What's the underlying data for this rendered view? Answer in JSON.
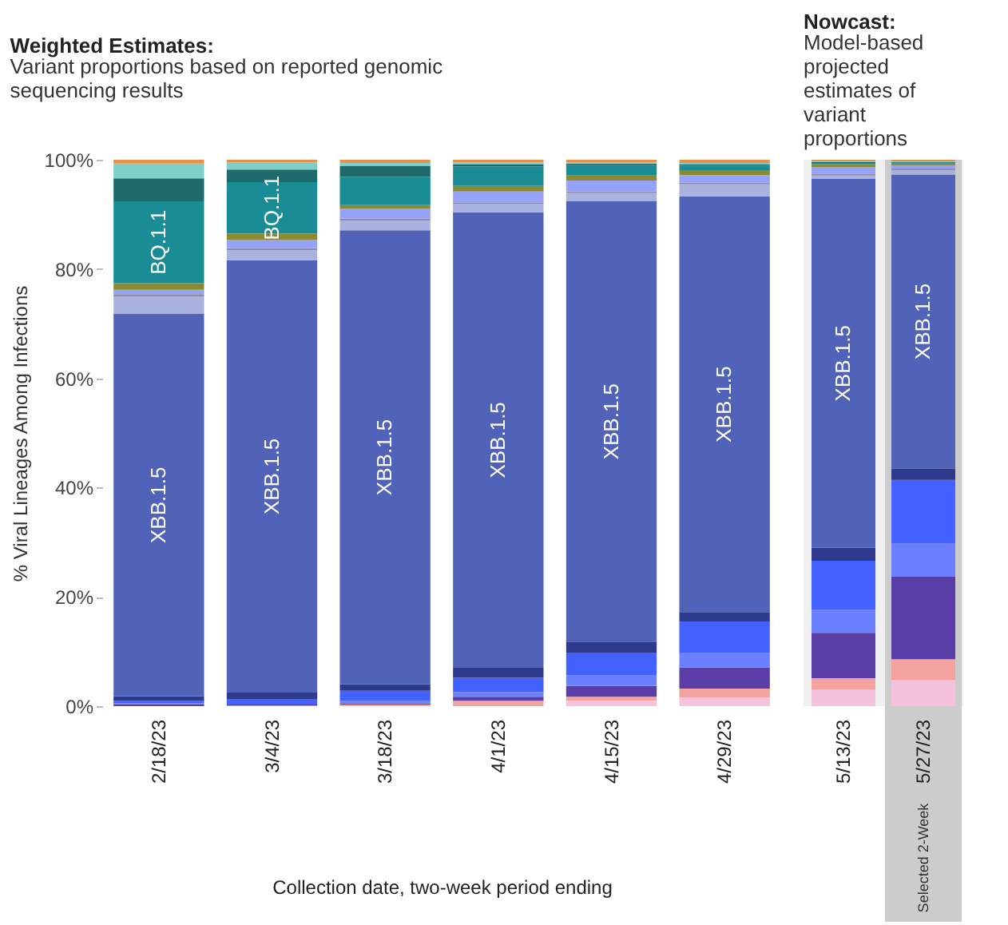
{
  "chart_data": [
    {
      "type": "bar",
      "stacked": true,
      "title": "Weighted Estimates:",
      "subtitle": "Variant proportions based on reported genomic sequencing results",
      "ylabel": "% Viral Lineages Among Infections",
      "xlabel": "Collection date, two-week period ending",
      "categories": [
        "2/18/23",
        "3/4/23",
        "3/18/23",
        "4/1/23",
        "4/15/23",
        "4/29/23"
      ],
      "ylim": [
        0,
        100
      ],
      "yticks": [
        {
          "value": 0,
          "label": "0%"
        },
        {
          "value": 20,
          "label": "20%"
        },
        {
          "value": 40,
          "label": "40%"
        },
        {
          "value": 60,
          "label": "60%"
        },
        {
          "value": 80,
          "label": "80%"
        },
        {
          "value": 100,
          "label": "100%"
        }
      ],
      "series": [
        {
          "color": "#f4c2dc",
          "values": [
            0,
            0,
            0,
            0,
            1.0,
            1.6
          ]
        },
        {
          "color": "#f4a3a0",
          "values": [
            0,
            0.1,
            0.3,
            1.0,
            0.7,
            1.6
          ]
        },
        {
          "color": "#5a3ea8",
          "values": [
            0.3,
            0.2,
            0.2,
            0.7,
            2.0,
            3.9
          ]
        },
        {
          "color": "#6a80ff",
          "values": [
            0.2,
            0,
            0.5,
            0.9,
            2.0,
            2.6
          ]
        },
        {
          "color": "#4361ff",
          "values": [
            0.5,
            1.0,
            1.8,
            2.6,
            4.1,
            5.8
          ]
        },
        {
          "color": "#2e3a8c",
          "values": [
            0.8,
            1.2,
            1.2,
            1.8,
            2.0,
            1.7
          ]
        },
        {
          "name": "XBB.1.5",
          "color": "#5163b8",
          "values": [
            70,
            79.1,
            83.1,
            83.4,
            80.6,
            76.1
          ]
        },
        {
          "color": "#a9b2df",
          "values": [
            3.2,
            1.8,
            1.8,
            1.5,
            1.5,
            2.2
          ]
        },
        {
          "color": "#8d8fa8",
          "values": [
            0.4,
            0.4,
            0.3,
            0.3,
            0.3,
            0.3
          ]
        },
        {
          "color": "#95a2f8",
          "values": [
            0.8,
            1.5,
            1.8,
            2.0,
            2.0,
            1.4
          ]
        },
        {
          "color": "#8a8a30",
          "values": [
            1.2,
            1.2,
            0.7,
            1.0,
            0.9,
            0.9
          ]
        },
        {
          "name": "BQ.1.1",
          "color": "#1a8c96",
          "values": [
            15,
            9.4,
            5.2,
            3.6,
            1.9,
            0.8
          ]
        },
        {
          "color": "#1f6b6b",
          "values": [
            4.2,
            2.3,
            2.0,
            0.4,
            0.3,
            0.3
          ]
        },
        {
          "color": "#7ecfc8",
          "values": [
            2.7,
            1.3,
            0.5,
            0.3,
            0.2,
            0.2
          ]
        },
        {
          "color": "#e8904a",
          "values": [
            0.7,
            0.5,
            0.6,
            0.5,
            0.5,
            0.6
          ]
        }
      ]
    },
    {
      "type": "bar",
      "stacked": true,
      "title": "Nowcast:",
      "subtitle": "Model-based projected estimates of variant proportions",
      "categories": [
        "5/13/23",
        "5/27/23"
      ],
      "ylim": [
        0,
        100
      ],
      "tick_labels": "x",
      "bands": [
        {
          "axis": "x",
          "from": "5/27/23",
          "to": "5/27/23",
          "label": "Selected 2-Week",
          "color": "#cccccc"
        }
      ],
      "series": [
        {
          "color": "#f4c2dc",
          "values": [
            3.0,
            4.8
          ]
        },
        {
          "color": "#f4a3a0",
          "values": [
            2.1,
            3.8
          ]
        },
        {
          "color": "#5a3ea8",
          "values": [
            8.3,
            15.1
          ]
        },
        {
          "color": "#6a80ff",
          "values": [
            4.3,
            6.1
          ]
        },
        {
          "color": "#4361ff",
          "values": [
            8.9,
            11.6
          ]
        },
        {
          "color": "#2e3a8c",
          "values": [
            2.4,
            2.1
          ]
        },
        {
          "name": "XBB.1.5",
          "color": "#5163b8",
          "values": [
            67.5,
            53.8
          ]
        },
        {
          "color": "#a9b2df",
          "values": [
            0.6,
            0.8
          ]
        },
        {
          "color": "#8d8fa8",
          "values": [
            0.3,
            0.3
          ]
        },
        {
          "color": "#95a2f8",
          "values": [
            1.3,
            0.6
          ]
        },
        {
          "color": "#8a8a30",
          "values": [
            0.5,
            0.3
          ]
        },
        {
          "color": "#1a8c96",
          "values": [
            0.2,
            0.2
          ]
        },
        {
          "color": "#1f6b6b",
          "values": [
            0.2,
            0.1
          ]
        },
        {
          "color": "#7ecfc8",
          "values": [
            0.1,
            0.1
          ]
        },
        {
          "color": "#e8904a",
          "values": [
            0.3,
            0.3
          ]
        }
      ]
    }
  ]
}
